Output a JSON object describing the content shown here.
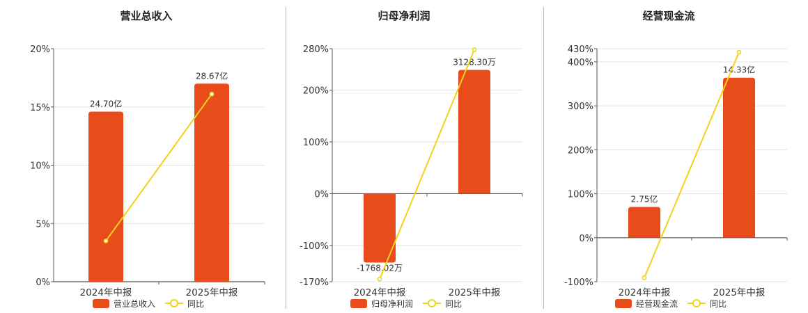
{
  "colors": {
    "bar": "#E84C1A",
    "line": "#F1D21C",
    "grid": "#dfe3ea",
    "axis": "#555555",
    "text": "#333333"
  },
  "legend": {
    "bar_icon": "rounded-rect",
    "line_icon": "line-circle"
  },
  "chart_data": [
    {
      "type": "bar",
      "title": "营业总收入",
      "categories": [
        "2024年中报",
        "2025年中报"
      ],
      "series": [
        {
          "name": "营业总收入",
          "type": "bar",
          "axis": "left",
          "values": [
            14.6,
            17.0
          ],
          "labels": [
            "24.70亿",
            "28.67亿"
          ]
        },
        {
          "name": "同比",
          "type": "line",
          "axis": "left",
          "values": [
            3.5,
            16.1
          ]
        }
      ],
      "yaxis": {
        "min": 0,
        "max": 20,
        "ticks": [
          0,
          5,
          10,
          15,
          20
        ],
        "tick_labels": [
          "0%",
          "5%",
          "10%",
          "15%",
          "20%"
        ]
      },
      "legend": [
        "营业总收入",
        "同比"
      ],
      "grid": true
    },
    {
      "type": "bar",
      "title": "归母净利润",
      "categories": [
        "2024年中报",
        "2025年中报"
      ],
      "series": [
        {
          "name": "归母净利润",
          "type": "bar",
          "axis": "left",
          "values": [
            -133,
            239
          ],
          "labels": [
            "-1768.02万",
            "3128.30万"
          ]
        },
        {
          "name": "同比",
          "type": "line",
          "axis": "left",
          "values": [
            -165,
            278
          ]
        }
      ],
      "yaxis": {
        "min": -170,
        "max": 280,
        "ticks": [
          -170,
          -100,
          0,
          100,
          200,
          280
        ],
        "tick_labels": [
          "-170%",
          "-100%",
          "0%",
          "100%",
          "200%",
          "280%"
        ]
      },
      "legend": [
        "归母净利润",
        "同比"
      ],
      "grid": true
    },
    {
      "type": "bar",
      "title": "经营现金流",
      "categories": [
        "2024年中报",
        "2025年中报"
      ],
      "series": [
        {
          "name": "经营现金流",
          "type": "bar",
          "axis": "left",
          "values": [
            70,
            364
          ],
          "labels": [
            "2.75亿",
            "14.33亿"
          ]
        },
        {
          "name": "同比",
          "type": "line",
          "axis": "left",
          "values": [
            -91,
            422
          ]
        }
      ],
      "yaxis": {
        "min": -100,
        "max": 430,
        "ticks": [
          -100,
          0,
          100,
          200,
          300,
          400,
          430
        ],
        "tick_labels": [
          "-100%",
          "0%",
          "100%",
          "200%",
          "300%",
          "400%",
          "430%"
        ]
      },
      "legend": [
        "经营现金流",
        "同比"
      ],
      "grid": true
    }
  ]
}
